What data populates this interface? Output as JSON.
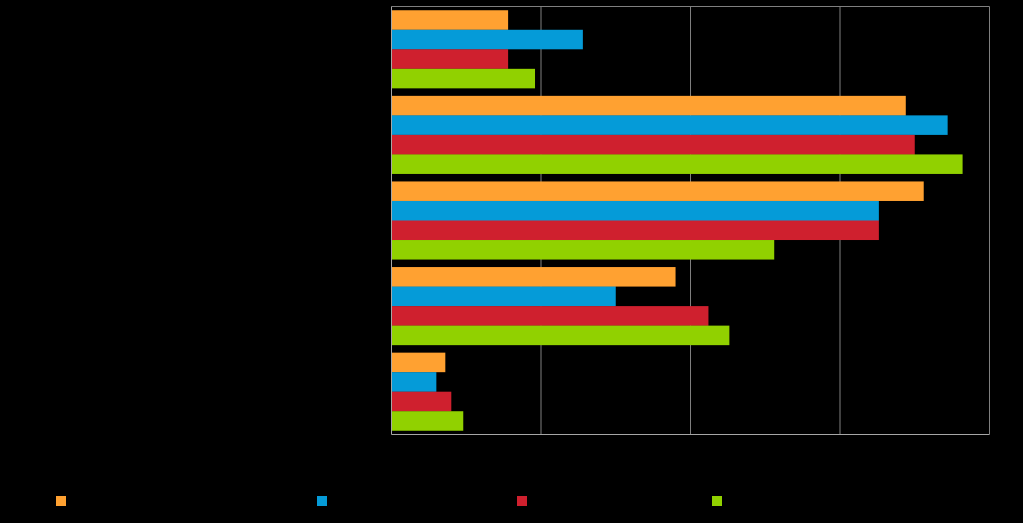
{
  "chart_data": {
    "type": "bar",
    "orientation": "horizontal",
    "categories": [
      "",
      "",
      "",
      "",
      ""
    ],
    "xlim": [
      0,
      100
    ],
    "grid": true,
    "legend_position": "bottom",
    "series": [
      {
        "color": "#FFA131",
        "values": [
          19.5,
          86,
          89,
          47.5,
          9
        ]
      },
      {
        "color": "#059BD8",
        "values": [
          32,
          93,
          81.5,
          37.5,
          7.5
        ]
      },
      {
        "color": "#CF202E",
        "values": [
          19.5,
          87.5,
          81.5,
          53,
          10
        ]
      },
      {
        "color": "#91D100",
        "values": [
          24,
          95.5,
          64,
          56.5,
          12
        ]
      }
    ],
    "colors": {
      "background": "#000000",
      "gridline": "#7F7F7F",
      "axis": "#A6A6A6"
    }
  }
}
